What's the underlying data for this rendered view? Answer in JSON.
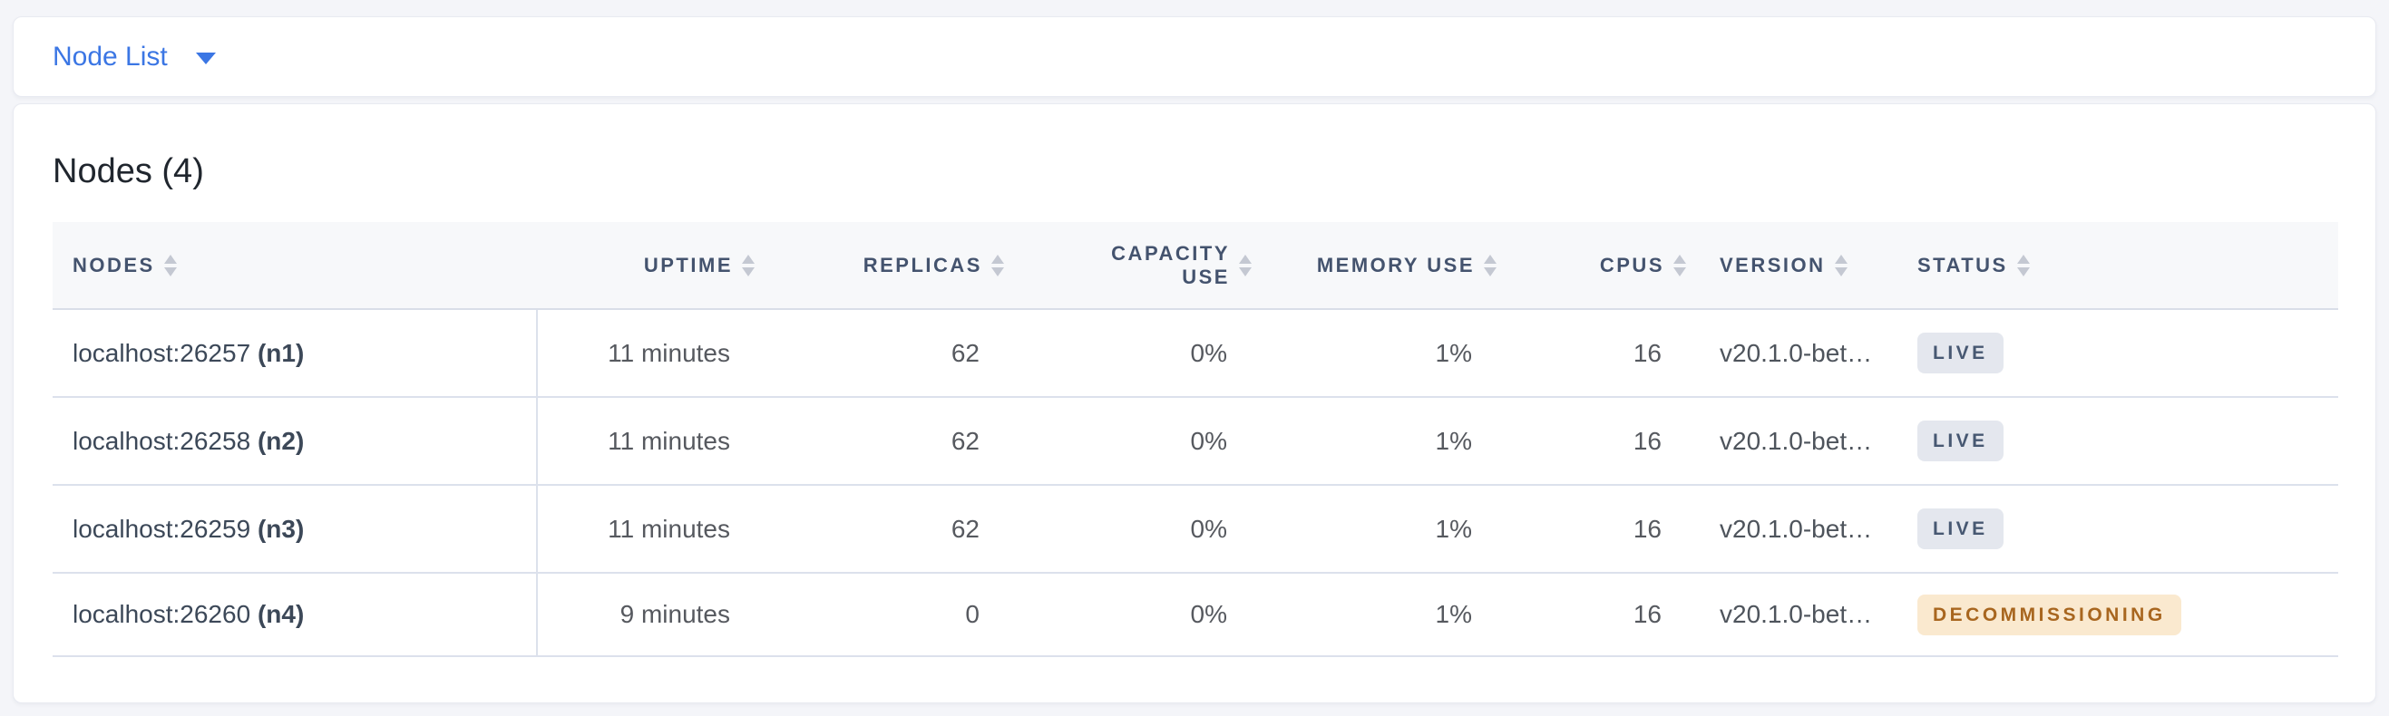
{
  "view_selector": {
    "label": "Node List"
  },
  "main": {
    "title": "Nodes (4)",
    "table": {
      "columns": [
        {
          "key": "nodes",
          "label": "NODES",
          "align": "left"
        },
        {
          "key": "uptime",
          "label": "UPTIME",
          "align": "right"
        },
        {
          "key": "replicas",
          "label": "REPLICAS",
          "align": "right"
        },
        {
          "key": "capacity_use",
          "label": "CAPACITY USE",
          "align": "right"
        },
        {
          "key": "memory_use",
          "label": "MEMORY USE",
          "align": "right"
        },
        {
          "key": "cpus",
          "label": "CPUS",
          "align": "right"
        },
        {
          "key": "version",
          "label": "VERSION",
          "align": "left"
        },
        {
          "key": "status",
          "label": "STATUS",
          "align": "left"
        }
      ],
      "rows": [
        {
          "address": "localhost:26257",
          "node_id": "(n1)",
          "uptime": "11 minutes",
          "replicas": "62",
          "capacity_use": "0%",
          "memory_use": "1%",
          "cpus": "16",
          "version": "v20.1.0-bet…",
          "status": "LIVE",
          "status_type": "live"
        },
        {
          "address": "localhost:26258",
          "node_id": "(n2)",
          "uptime": "11 minutes",
          "replicas": "62",
          "capacity_use": "0%",
          "memory_use": "1%",
          "cpus": "16",
          "version": "v20.1.0-bet…",
          "status": "LIVE",
          "status_type": "live"
        },
        {
          "address": "localhost:26259",
          "node_id": "(n3)",
          "uptime": "11 minutes",
          "replicas": "62",
          "capacity_use": "0%",
          "memory_use": "1%",
          "cpus": "16",
          "version": "v20.1.0-bet…",
          "status": "LIVE",
          "status_type": "live"
        },
        {
          "address": "localhost:26260",
          "node_id": "(n4)",
          "uptime": "9 minutes",
          "replicas": "0",
          "capacity_use": "0%",
          "memory_use": "1%",
          "cpus": "16",
          "version": "v20.1.0-bet…",
          "status": "DECOMMISSIONING",
          "status_type": "decommissioning"
        }
      ]
    }
  },
  "colors": {
    "accent_blue": "#3B76E4",
    "page_background": "#F4F5F9",
    "header_background": "#F7F8FA",
    "badge_live_bg": "#E4E7EE",
    "badge_live_text": "#475872",
    "badge_decommissioning_bg": "#FAE9CF",
    "badge_decommissioning_text": "#A8661F"
  }
}
